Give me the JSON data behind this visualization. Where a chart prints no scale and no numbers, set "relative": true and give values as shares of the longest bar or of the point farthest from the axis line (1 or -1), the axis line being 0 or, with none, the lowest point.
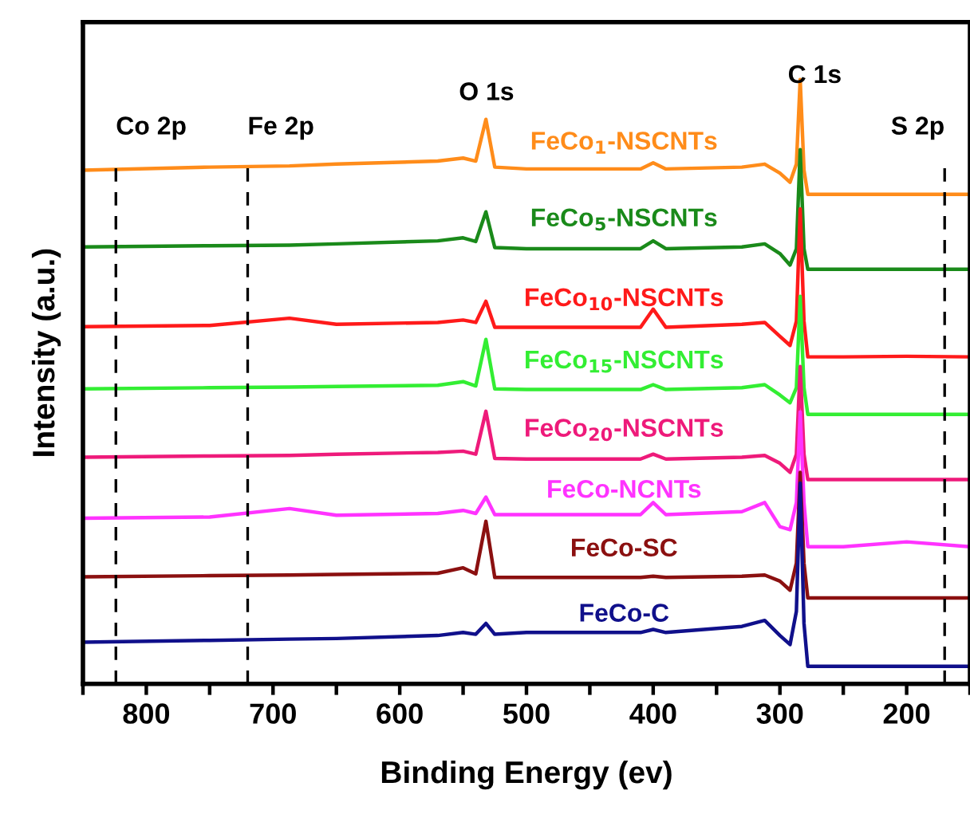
{
  "chart_data": {
    "type": "line",
    "relative": true,
    "xlabel": "Binding Energy (ev)",
    "ylabel": "Intensity (a.u.)",
    "xlim": [
      850,
      150
    ],
    "xticks": [
      {
        "value": 850,
        "label": null
      },
      800,
      {
        "value": 750,
        "label": null
      },
      700,
      {
        "value": 650,
        "label": null
      },
      600,
      {
        "value": 550,
        "label": null
      },
      500,
      {
        "value": 450,
        "label": null
      },
      400,
      {
        "value": 350,
        "label": null
      },
      300,
      {
        "value": 250,
        "label": null
      },
      200,
      {
        "value": 150,
        "label": null
      }
    ],
    "x": [
      850,
      750,
      687,
      650,
      570,
      550,
      540,
      532,
      525,
      500,
      410,
      400,
      390,
      330,
      312,
      300,
      292,
      287,
      284,
      281,
      278,
      250,
      200,
      150
    ],
    "series": [
      {
        "name": "FeCo$_{1}$-NSCNTs",
        "color": "#ff8c1a",
        "values": [
          0.85,
          0.855,
          0.857,
          0.86,
          0.865,
          0.87,
          0.865,
          0.934,
          0.855,
          0.852,
          0.852,
          0.862,
          0.852,
          0.855,
          0.86,
          0.845,
          0.83,
          0.86,
          1.0,
          0.85,
          0.81,
          0.81,
          0.81,
          0.81
        ]
      },
      {
        "name": "FeCo$_{5}$-NSCNTs",
        "color": "#1a8a1a",
        "values": [
          0.723,
          0.725,
          0.726,
          0.728,
          0.733,
          0.738,
          0.732,
          0.781,
          0.722,
          0.72,
          0.72,
          0.733,
          0.72,
          0.723,
          0.728,
          0.712,
          0.693,
          0.72,
          0.884,
          0.72,
          0.686,
          0.686,
          0.686,
          0.686
        ]
      },
      {
        "name": "FeCo$_{10}$-NSCNTs",
        "color": "#ff1a1a",
        "values": [
          0.591,
          0.593,
          0.605,
          0.595,
          0.598,
          0.602,
          0.598,
          0.633,
          0.59,
          0.59,
          0.59,
          0.62,
          0.59,
          0.595,
          0.598,
          0.575,
          0.56,
          0.6,
          0.786,
          0.6,
          0.541,
          0.541,
          0.542,
          0.541
        ]
      },
      {
        "name": "FeCo$_{15}$-NSCNTs",
        "color": "#33ee33",
        "values": [
          0.488,
          0.49,
          0.491,
          0.492,
          0.494,
          0.5,
          0.493,
          0.57,
          0.488,
          0.487,
          0.487,
          0.495,
          0.487,
          0.49,
          0.495,
          0.478,
          0.465,
          0.49,
          0.641,
          0.49,
          0.446,
          0.446,
          0.446,
          0.446
        ]
      },
      {
        "name": "FeCo$_{20}$-NSCNTs",
        "color": "#ee1a7a",
        "values": [
          0.375,
          0.377,
          0.378,
          0.38,
          0.383,
          0.385,
          0.38,
          0.451,
          0.373,
          0.372,
          0.372,
          0.38,
          0.372,
          0.375,
          0.378,
          0.365,
          0.35,
          0.38,
          0.525,
          0.38,
          0.338,
          0.338,
          0.338,
          0.338
        ]
      },
      {
        "name": "FeCo-NCNTs",
        "color": "#ff33ff",
        "values": [
          0.274,
          0.276,
          0.29,
          0.279,
          0.282,
          0.287,
          0.282,
          0.309,
          0.28,
          0.28,
          0.28,
          0.3,
          0.28,
          0.285,
          0.3,
          0.26,
          0.255,
          0.3,
          0.45,
          0.3,
          0.227,
          0.227,
          0.235,
          0.227
        ]
      },
      {
        "name": "FeCo-SC",
        "color": "#8b1010",
        "values": [
          0.177,
          0.179,
          0.18,
          0.181,
          0.183,
          0.192,
          0.182,
          0.269,
          0.176,
          0.176,
          0.176,
          0.178,
          0.176,
          0.178,
          0.18,
          0.17,
          0.155,
          0.2,
          0.35,
          0.2,
          0.142,
          0.142,
          0.142,
          0.142
        ]
      },
      {
        "name": "FeCo-C",
        "color": "#10108b",
        "values": [
          0.069,
          0.072,
          0.074,
          0.075,
          0.08,
          0.085,
          0.082,
          0.1,
          0.082,
          0.085,
          0.085,
          0.09,
          0.085,
          0.095,
          0.105,
          0.08,
          0.065,
          0.12,
          0.332,
          0.1,
          0.029,
          0.029,
          0.029,
          0.029
        ]
      }
    ],
    "ref_lines": [
      {
        "axis": "x",
        "value": 824,
        "label": "Co 2p",
        "color": "#000000",
        "line_style": "dashed"
      },
      {
        "axis": "x",
        "value": 720,
        "label": "Fe 2p",
        "color": "#000000",
        "line_style": "dashed"
      },
      {
        "axis": "x",
        "value": 170,
        "label": "S 2p",
        "color": "#000000",
        "line_style": "dashed"
      }
    ],
    "annotations": [
      "O 1s",
      "C 1s"
    ],
    "grid": false,
    "legend": false,
    "marker": "none",
    "line_style": "solid"
  }
}
